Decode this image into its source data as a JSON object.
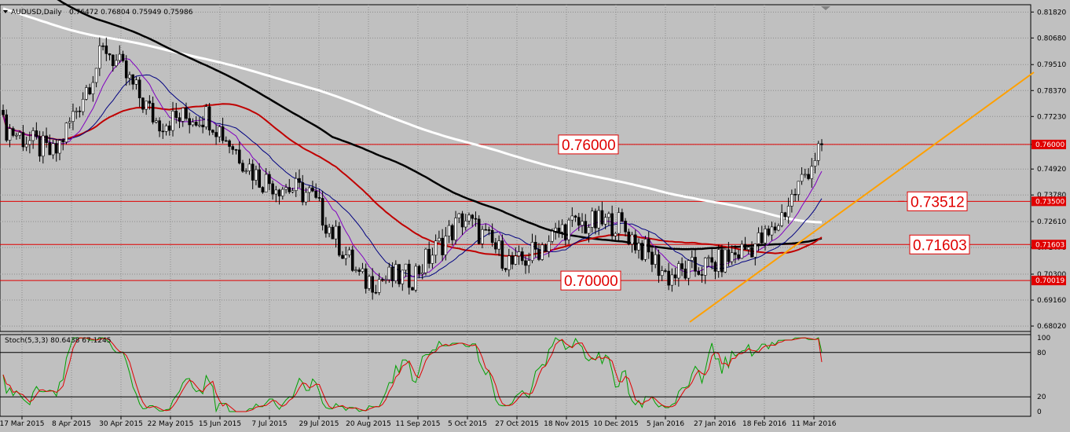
{
  "header": {
    "symbol": "AUDUSD,Daily",
    "ohlc": "0.76472 0.76804 0.75949 0.75986"
  },
  "stoch_header": "Stoch(5,3,3) 80.6438 67.1245",
  "levels": [
    {
      "label": "0.76000",
      "price": 0.76,
      "tag": "0.76000"
    },
    {
      "label": "0.73512",
      "price": 0.735,
      "tag": "0.73500"
    },
    {
      "label": "0.71603",
      "price": 0.71603,
      "tag": "0.71603"
    },
    {
      "label": "0.70000",
      "price": 0.70019,
      "tag": "0.70019"
    }
  ],
  "price_axis": [
    "0.81820",
    "0.80680",
    "0.79510",
    "0.78370",
    "0.77230",
    "0.76000",
    "0.74920",
    "0.73780",
    "0.72610",
    "0.71470",
    "0.70300",
    "0.69160",
    "0.68020"
  ],
  "stoch_axis": [
    "100",
    "80",
    "20",
    "0"
  ],
  "date_axis": [
    "17 Mar 2015",
    "8 Apr 2015",
    "30 Apr 2015",
    "22 May 2015",
    "15 Jun 2015",
    "7 Jul 2015",
    "29 Jul 2015",
    "20 Aug 2015",
    "11 Sep 2015",
    "5 Oct 2015",
    "27 Oct 2015",
    "18 Nov 2015",
    "10 Dec 2015",
    "5 Jan 2016",
    "27 Jan 2016",
    "18 Feb 2016",
    "11 Mar 2016"
  ],
  "colors": {
    "background": "#c0c0c0",
    "grid": "#8c8c8c",
    "level_line": "#e00000",
    "level_box_fill": "#ffffff",
    "trendline": "#ffa000",
    "sma_200": "#ffffff",
    "sma_100": "#000000",
    "ema_red": "#c00000",
    "ma_purple": "#8000c0",
    "ma_navy": "#000080",
    "stoch_main": "#00a000",
    "stoch_signal": "#e00000",
    "candle_bull": "#ffffff",
    "candle_bear": "#000000"
  },
  "chart_data": {
    "type": "candlestick",
    "symbol": "AUDUSD",
    "timeframe": "Daily",
    "last_close": 0.75986,
    "ylim": [
      0.6785,
      0.819
    ],
    "key_swings": [
      {
        "date": "17 Mar 2015",
        "close": 0.768
      },
      {
        "date": "8 Apr 2015",
        "close": 0.755
      },
      {
        "date": "30 Apr 2015",
        "close": 0.803
      },
      {
        "date": "22 May 2015",
        "close": 0.77
      },
      {
        "date": "15 Jun 2015",
        "close": 0.773
      },
      {
        "date": "7 Jul 2015",
        "close": 0.745
      },
      {
        "date": "29 Jul 2015",
        "close": 0.738
      },
      {
        "date": "20 Aug 2015",
        "close": 0.7
      },
      {
        "date": "11 Sep 2015",
        "close": 0.702
      },
      {
        "date": "5 Oct 2015",
        "close": 0.728
      },
      {
        "date": "27 Oct 2015",
        "close": 0.706
      },
      {
        "date": "18 Nov 2015",
        "close": 0.724
      },
      {
        "date": "10 Dec 2015",
        "close": 0.726
      },
      {
        "date": "5 Jan 2016",
        "close": 0.702
      },
      {
        "date": "27 Jan 2016",
        "close": 0.708
      },
      {
        "date": "18 Feb 2016",
        "close": 0.72
      },
      {
        "date": "11 Mar 2016",
        "close": 0.76
      }
    ],
    "stochastic": {
      "main": 80.6438,
      "signal": 67.1245,
      "levels": [
        80,
        20
      ]
    }
  }
}
